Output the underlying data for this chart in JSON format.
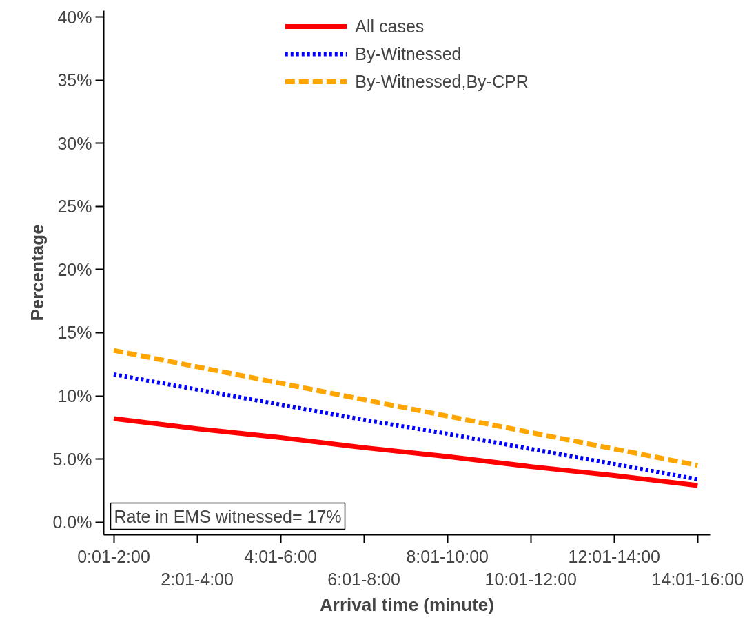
{
  "chart_data": {
    "type": "line",
    "xlabel": "Arrival time (minute)",
    "ylabel": "Percentage",
    "categories": [
      "0:01-2:00",
      "2:01-4:00",
      "4:01-6:00",
      "6:01-8:00",
      "8:01-10:00",
      "10:01-12:00",
      "12:01-14:00",
      "14:01-16:00"
    ],
    "series": [
      {
        "name": "All cases",
        "color": "#ff0000",
        "line_style": "solid",
        "values": [
          8.2,
          7.4,
          6.7,
          5.9,
          5.2,
          4.4,
          3.7,
          2.9
        ]
      },
      {
        "name": "By-Witnessed",
        "color": "#0000ff",
        "line_style": "dotted",
        "values": [
          11.7,
          10.5,
          9.3,
          8.1,
          7.0,
          5.8,
          4.6,
          3.4
        ]
      },
      {
        "name": "By-Witnessed,By-CPR",
        "color": "#ffa500",
        "line_style": "dashed",
        "values": [
          13.6,
          12.3,
          11.0,
          9.7,
          8.4,
          7.1,
          5.8,
          4.5
        ]
      }
    ],
    "ylim": [
      -1,
      40.5
    ],
    "yticks": [
      {
        "value": 0,
        "label": "0.0%"
      },
      {
        "value": 5,
        "label": "5.0%"
      },
      {
        "value": 10,
        "label": "10%"
      },
      {
        "value": 15,
        "label": "15%"
      },
      {
        "value": 20,
        "label": "20%"
      },
      {
        "value": 25,
        "label": "25%"
      },
      {
        "value": 30,
        "label": "30%"
      },
      {
        "value": 35,
        "label": "35%"
      },
      {
        "value": 40,
        "label": "40%"
      }
    ],
    "annotations": [
      "Rate in EMS witnessed= 17%"
    ],
    "grid": false,
    "legend": "top",
    "marker": "none"
  }
}
